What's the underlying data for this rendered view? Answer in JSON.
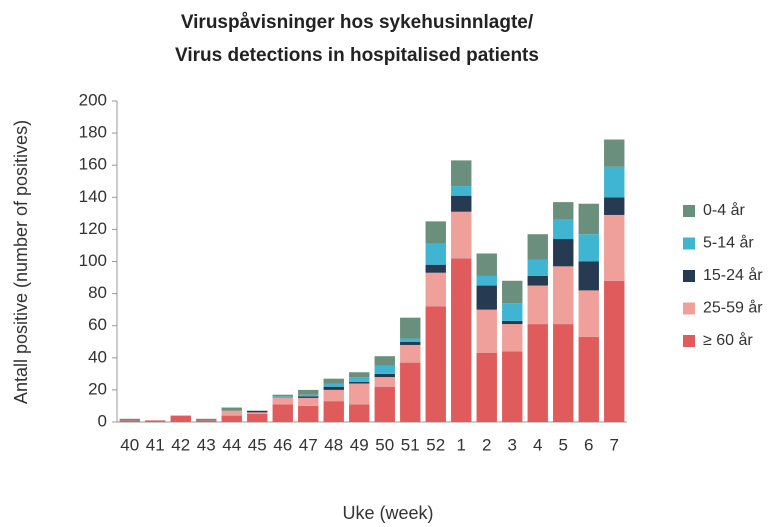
{
  "chart_data": {
    "type": "stacked_bar",
    "title": [
      "Viruspåvisninger hos sykehusinnlagte/",
      "Virus detections in hospitalised patients"
    ],
    "x_label": "Uke (week)",
    "y_label": "Antall positive (number of positives)",
    "categories": [
      "40",
      "41",
      "42",
      "43",
      "44",
      "45",
      "46",
      "47",
      "48",
      "49",
      "50",
      "51",
      "52",
      "1",
      "2",
      "3",
      "4",
      "5",
      "6",
      "7"
    ],
    "series": [
      {
        "name": "≥ 60 år",
        "color": "#e05c5c",
        "values": [
          1,
          1,
          4,
          1,
          4,
          5,
          11,
          10,
          13,
          11,
          22,
          37,
          72,
          102,
          43,
          44,
          61,
          61,
          53,
          88
        ]
      },
      {
        "name": "25-59 år",
        "color": "#f0a09a",
        "values": [
          0,
          0,
          0,
          0,
          3,
          1,
          4,
          5,
          7,
          13,
          6,
          11,
          21,
          29,
          27,
          17,
          24,
          36,
          29,
          41
        ]
      },
      {
        "name": "15-24 år",
        "color": "#263a52",
        "values": [
          0,
          0,
          0,
          0,
          0,
          1,
          0,
          1,
          2,
          1,
          2,
          2,
          5,
          10,
          15,
          2,
          6,
          17,
          18,
          11
        ]
      },
      {
        "name": "5-14 år",
        "color": "#3fb5d2",
        "values": [
          0,
          0,
          0,
          0,
          0,
          0,
          1,
          1,
          2,
          3,
          5,
          2,
          13,
          6,
          6,
          11,
          10,
          12,
          17,
          19
        ]
      },
      {
        "name": "0-4 år",
        "color": "#6b8f7d",
        "values": [
          1,
          0,
          0,
          1,
          2,
          0,
          1,
          3,
          3,
          3,
          6,
          13,
          14,
          16,
          14,
          14,
          16,
          11,
          19,
          17
        ]
      }
    ],
    "ylim": [
      0,
      200
    ],
    "yticks": [
      0,
      20,
      40,
      60,
      80,
      100,
      120,
      140,
      160,
      180,
      200
    ],
    "grid": false,
    "legend": "right"
  }
}
